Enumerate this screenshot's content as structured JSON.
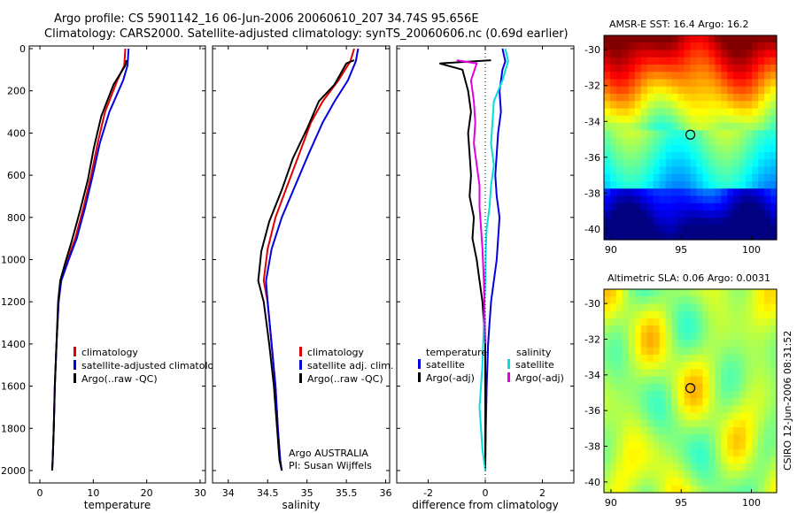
{
  "header": {
    "line1": "Argo profile: CS 5901142_16 06-Jun-2006 20060610_207 34.74S 95.656E",
    "line2": "Climatology: CARS2000. Satellite-adjusted climatology: synTS_20060606.nc (0.69d earlier)"
  },
  "side_text": "CSIRO 12-Jun-2006 08:31:52",
  "colors": {
    "climatology": "#e00000",
    "satellite": "#0000e0",
    "argo": "#000000",
    "sat_salinity": "#00dede",
    "argo_salinity": "#e000e0"
  },
  "chart_data": [
    {
      "id": "temperature",
      "type": "line",
      "xlabel": "temperature",
      "ylabel": "",
      "xlim": [
        -2,
        31
      ],
      "ylim": [
        2050,
        0
      ],
      "y_inverted": true,
      "xticks": [
        0,
        10,
        20,
        30
      ],
      "yticks": [
        0,
        200,
        400,
        600,
        800,
        1000,
        1200,
        1400,
        1600,
        1800,
        2000
      ],
      "legend": [
        "climatology",
        "satellite-adjusted climatology",
        "Argo(..raw -QC)"
      ],
      "series": [
        {
          "name": "climatology",
          "color": "#e00000",
          "x": [
            16.0,
            15.8,
            14.5,
            12.2,
            10.8,
            9.6,
            8.2,
            6.6,
            5.2,
            3.9,
            3.5,
            3.1,
            2.8,
            2.6,
            2.4,
            2.3
          ],
          "y": [
            0,
            80,
            150,
            300,
            450,
            600,
            750,
            900,
            1000,
            1100,
            1200,
            1400,
            1600,
            1800,
            1950,
            2000
          ]
        },
        {
          "name": "satellite-adjusted climatology",
          "color": "#0000e0",
          "x": [
            16.6,
            16.4,
            15.6,
            13.0,
            11.2,
            9.9,
            8.5,
            6.9,
            5.4,
            4.0,
            3.5,
            3.1,
            2.8,
            2.6,
            2.4,
            2.3
          ],
          "y": [
            0,
            80,
            150,
            300,
            450,
            600,
            750,
            900,
            1000,
            1100,
            1200,
            1400,
            1600,
            1800,
            1950,
            2000
          ]
        },
        {
          "name": "Argo(..raw -QC)",
          "color": "#000000",
          "x": [
            16.2,
            16.0,
            13.8,
            11.5,
            10.1,
            9.0,
            7.6,
            6.0,
            4.8,
            3.8,
            3.4,
            3.1,
            2.8,
            2.6,
            2.4,
            2.3
          ],
          "y": [
            55,
            80,
            170,
            320,
            470,
            620,
            760,
            910,
            1010,
            1100,
            1200,
            1400,
            1600,
            1800,
            1950,
            2000
          ]
        }
      ]
    },
    {
      "id": "salinity",
      "type": "line",
      "xlabel": "salinity",
      "ylabel": "",
      "xlim": [
        33.8,
        36.05
      ],
      "ylim": [
        2050,
        0
      ],
      "y_inverted": true,
      "xticks": [
        34,
        34.5,
        35,
        35.5,
        36
      ],
      "legend": [
        "climatology",
        "satellite adj. clim.",
        "Argo(..raw -QC)"
      ],
      "annotation": [
        "Argo AUSTRALIA",
        "PI: Susan Wijffels"
      ],
      "series": [
        {
          "name": "climatology",
          "color": "#e00000",
          "x": [
            35.6,
            35.55,
            35.4,
            35.2,
            35.05,
            34.9,
            34.75,
            34.6,
            34.5,
            34.45,
            34.5,
            34.55,
            34.6,
            34.63,
            34.66,
            34.68
          ],
          "y": [
            0,
            60,
            150,
            250,
            350,
            500,
            650,
            800,
            950,
            1100,
            1200,
            1400,
            1600,
            1800,
            1950,
            2000
          ]
        },
        {
          "name": "satellite adj. clim.",
          "color": "#0000e0",
          "x": [
            35.65,
            35.62,
            35.52,
            35.35,
            35.2,
            35.02,
            34.85,
            34.68,
            34.55,
            34.48,
            34.5,
            34.55,
            34.6,
            34.63,
            34.66,
            34.68
          ],
          "y": [
            0,
            60,
            150,
            250,
            350,
            500,
            650,
            800,
            950,
            1100,
            1200,
            1400,
            1600,
            1800,
            1950,
            2000
          ]
        },
        {
          "name": "Argo(..raw -QC)",
          "color": "#000000",
          "x": [
            35.6,
            35.5,
            35.35,
            35.15,
            35.0,
            34.82,
            34.68,
            34.52,
            34.42,
            34.38,
            34.45,
            34.52,
            34.58,
            34.62,
            34.65,
            34.68
          ],
          "y": [
            55,
            70,
            170,
            250,
            380,
            520,
            670,
            820,
            960,
            1100,
            1200,
            1400,
            1600,
            1800,
            1950,
            2000
          ]
        }
      ]
    },
    {
      "id": "difference",
      "type": "line",
      "xlabel": "difference from climatology",
      "ylabel": "",
      "xlim": [
        -3.1,
        3.1
      ],
      "ylim": [
        2050,
        0
      ],
      "y_inverted": true,
      "xticks": [
        -2,
        0,
        2
      ],
      "legend_left_title": "temperature",
      "legend_right_title": "salinity",
      "legend_left": [
        "satellite",
        "Argo(-adj)"
      ],
      "legend_right": [
        "satellite",
        "Argo(-adj)"
      ],
      "series": [
        {
          "name": "temperature satellite",
          "color": "#0000e0",
          "x": [
            0.6,
            0.7,
            0.6,
            0.5,
            0.55,
            0.45,
            0.4,
            0.35,
            0.4,
            0.5,
            0.45,
            0.4,
            0.3,
            0.2,
            0.15,
            0.1,
            0.05,
            0.02,
            0.0
          ],
          "y": [
            0,
            60,
            100,
            200,
            300,
            400,
            500,
            600,
            700,
            800,
            900,
            1000,
            1100,
            1200,
            1300,
            1400,
            1600,
            1800,
            2000
          ]
        },
        {
          "name": "temperature Argo(-adj)",
          "color": "#000000",
          "x": [
            0.2,
            -1.6,
            -0.8,
            -0.6,
            -0.5,
            -0.6,
            -0.55,
            -0.5,
            -0.55,
            -0.4,
            -0.45,
            -0.3,
            -0.2,
            -0.1,
            -0.05,
            0.0,
            0.0,
            0.0
          ],
          "y": [
            55,
            70,
            100,
            200,
            300,
            400,
            500,
            600,
            700,
            800,
            900,
            1000,
            1100,
            1200,
            1300,
            1400,
            1700,
            2000
          ]
        },
        {
          "name": "salinity satellite",
          "color": "#00dede",
          "x": [
            0.7,
            0.8,
            0.6,
            0.3,
            0.25,
            0.2,
            0.3,
            0.2,
            0.15,
            0.05,
            0.02,
            0.0,
            -0.05,
            -0.1,
            -0.2,
            -0.1,
            0.0
          ],
          "y": [
            0,
            60,
            150,
            250,
            350,
            450,
            550,
            650,
            750,
            850,
            950,
            1100,
            1300,
            1500,
            1700,
            1900,
            2000
          ]
        },
        {
          "name": "salinity Argo(-adj)",
          "color": "#e000e0",
          "x": [
            -1.0,
            -0.3,
            -0.5,
            -0.4,
            -0.35,
            -0.4,
            -0.3,
            -0.2,
            -0.2,
            -0.15,
            -0.1,
            -0.05,
            -0.02,
            0.0
          ],
          "y": [
            55,
            70,
            150,
            250,
            350,
            450,
            550,
            650,
            750,
            850,
            950,
            1100,
            1300,
            1400
          ]
        }
      ]
    },
    {
      "id": "sst_map",
      "type": "heatmap",
      "title": "AMSR-E SST: 16.4 Argo: 16.2",
      "xticks": [
        90,
        95,
        100
      ],
      "yticks": [
        -30,
        -32,
        -34,
        -36,
        -38,
        -40
      ],
      "xlim": [
        89.5,
        101.8
      ],
      "ylim": [
        -40.6,
        -29.2
      ],
      "marker": {
        "lon": 95.656,
        "lat": -34.74
      }
    },
    {
      "id": "sla_map",
      "type": "heatmap",
      "title": "Altimetric SLA: 0.06 Argo: 0.0031",
      "xticks": [
        90,
        95,
        100
      ],
      "yticks": [
        -30,
        -32,
        -34,
        -36,
        -38,
        -40
      ],
      "xlim": [
        89.5,
        101.8
      ],
      "ylim": [
        -40.6,
        -29.2
      ],
      "marker": {
        "lon": 95.656,
        "lat": -34.74
      }
    }
  ]
}
